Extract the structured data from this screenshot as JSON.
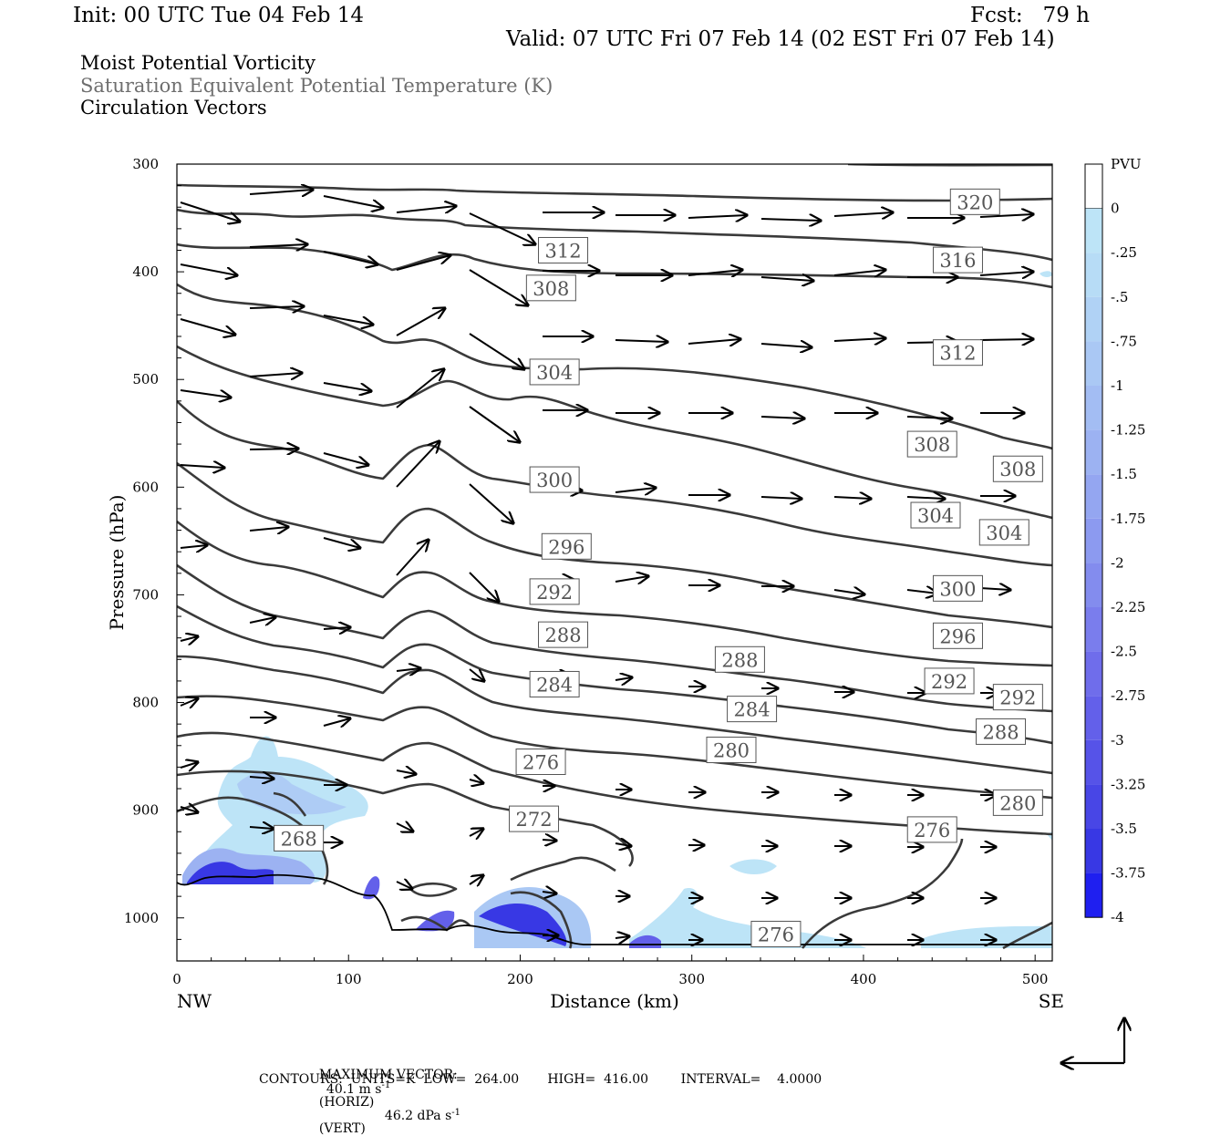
{
  "header": {
    "init": "Init: 00 UTC Tue 04 Feb 14",
    "fcst": "Fcst:   79 h",
    "valid": "Valid: 07 UTC Fri 07 Feb 14 (02 EST Fri 07 Feb 14)",
    "field1": "Moist Potential Vorticity",
    "field2": "Saturation Equivalent Potential Temperature (K)",
    "field3": "Circulation Vectors"
  },
  "footer": {
    "maxvec_label": "MAXIMUM VECTOR:",
    "maxvec_horiz": "40.1 m s",
    "maxvec_horiz_unit": "(HORIZ)",
    "maxvec_vert": "46.2 dPa s",
    "maxvec_vert_unit": "(VERT)",
    "exp": "-1",
    "contours": "CONTOURS:  UNITS=K  LOW=  264.00       HIGH=  416.00        INTERVAL=    4.0000"
  },
  "chart_data": {
    "type": "contour",
    "xlabel": "Distance (km)",
    "ylabel": "Pressure (hPa)",
    "xlim": [
      0,
      510
    ],
    "ylim": [
      1040,
      300
    ],
    "x_ticks": [
      "0",
      "100",
      "200",
      "300",
      "400",
      "500"
    ],
    "x_tick_values": [
      0,
      100,
      200,
      300,
      400,
      500
    ],
    "y_ticks": [
      "300",
      "400",
      "500",
      "600",
      "700",
      "800",
      "900",
      "1000"
    ],
    "y_tick_values": [
      300,
      400,
      500,
      600,
      700,
      800,
      900,
      1000
    ],
    "x_end_labels": {
      "left": "NW",
      "right": "SE"
    },
    "colorbar": {
      "unit": "PVU",
      "labels": [
        "0",
        "-.25",
        "-.5",
        "-.75",
        "-1",
        "-1.25",
        "-1.5",
        "-1.75",
        "-2",
        "-2.25",
        "-2.5",
        "-2.75",
        "-3",
        "-3.25",
        "-3.5",
        "-3.75",
        "-4"
      ],
      "colors": [
        "#ffffff",
        "#bde4f7",
        "#b7dcf6",
        "#b0d2f5",
        "#aac8f4",
        "#a3bdf3",
        "#9cb2f2",
        "#94a6f1",
        "#8c9af0",
        "#838cee",
        "#7a7ded",
        "#6f6deb",
        "#6360ea",
        "#5653e8",
        "#4846e6",
        "#3838e4",
        "#1f1ff0"
      ]
    },
    "contour_labels": [
      {
        "value": "320",
        "x": 465,
        "y": 335
      },
      {
        "value": "316",
        "x": 455,
        "y": 389
      },
      {
        "value": "312",
        "x": 225,
        "y": 380
      },
      {
        "value": "312",
        "x": 455,
        "y": 475
      },
      {
        "value": "308",
        "x": 218,
        "y": 415
      },
      {
        "value": "308",
        "x": 440,
        "y": 560
      },
      {
        "value": "308",
        "x": 490,
        "y": 583
      },
      {
        "value": "304",
        "x": 220,
        "y": 493
      },
      {
        "value": "304",
        "x": 442,
        "y": 626
      },
      {
        "value": "304",
        "x": 482,
        "y": 642
      },
      {
        "value": "300",
        "x": 220,
        "y": 593
      },
      {
        "value": "300",
        "x": 455,
        "y": 694
      },
      {
        "value": "296",
        "x": 227,
        "y": 655
      },
      {
        "value": "296",
        "x": 455,
        "y": 738
      },
      {
        "value": "292",
        "x": 220,
        "y": 697
      },
      {
        "value": "292",
        "x": 450,
        "y": 780
      },
      {
        "value": "292",
        "x": 490,
        "y": 795
      },
      {
        "value": "288",
        "x": 225,
        "y": 737
      },
      {
        "value": "288",
        "x": 328,
        "y": 760
      },
      {
        "value": "288",
        "x": 480,
        "y": 827
      },
      {
        "value": "284",
        "x": 220,
        "y": 783
      },
      {
        "value": "284",
        "x": 335,
        "y": 806
      },
      {
        "value": "280",
        "x": 323,
        "y": 844
      },
      {
        "value": "280",
        "x": 490,
        "y": 893
      },
      {
        "value": "276",
        "x": 212,
        "y": 855
      },
      {
        "value": "276",
        "x": 440,
        "y": 918
      },
      {
        "value": "276",
        "x": 349,
        "y": 1015
      },
      {
        "value": "272",
        "x": 208,
        "y": 908
      },
      {
        "value": "268",
        "x": 71,
        "y": 926
      }
    ]
  }
}
